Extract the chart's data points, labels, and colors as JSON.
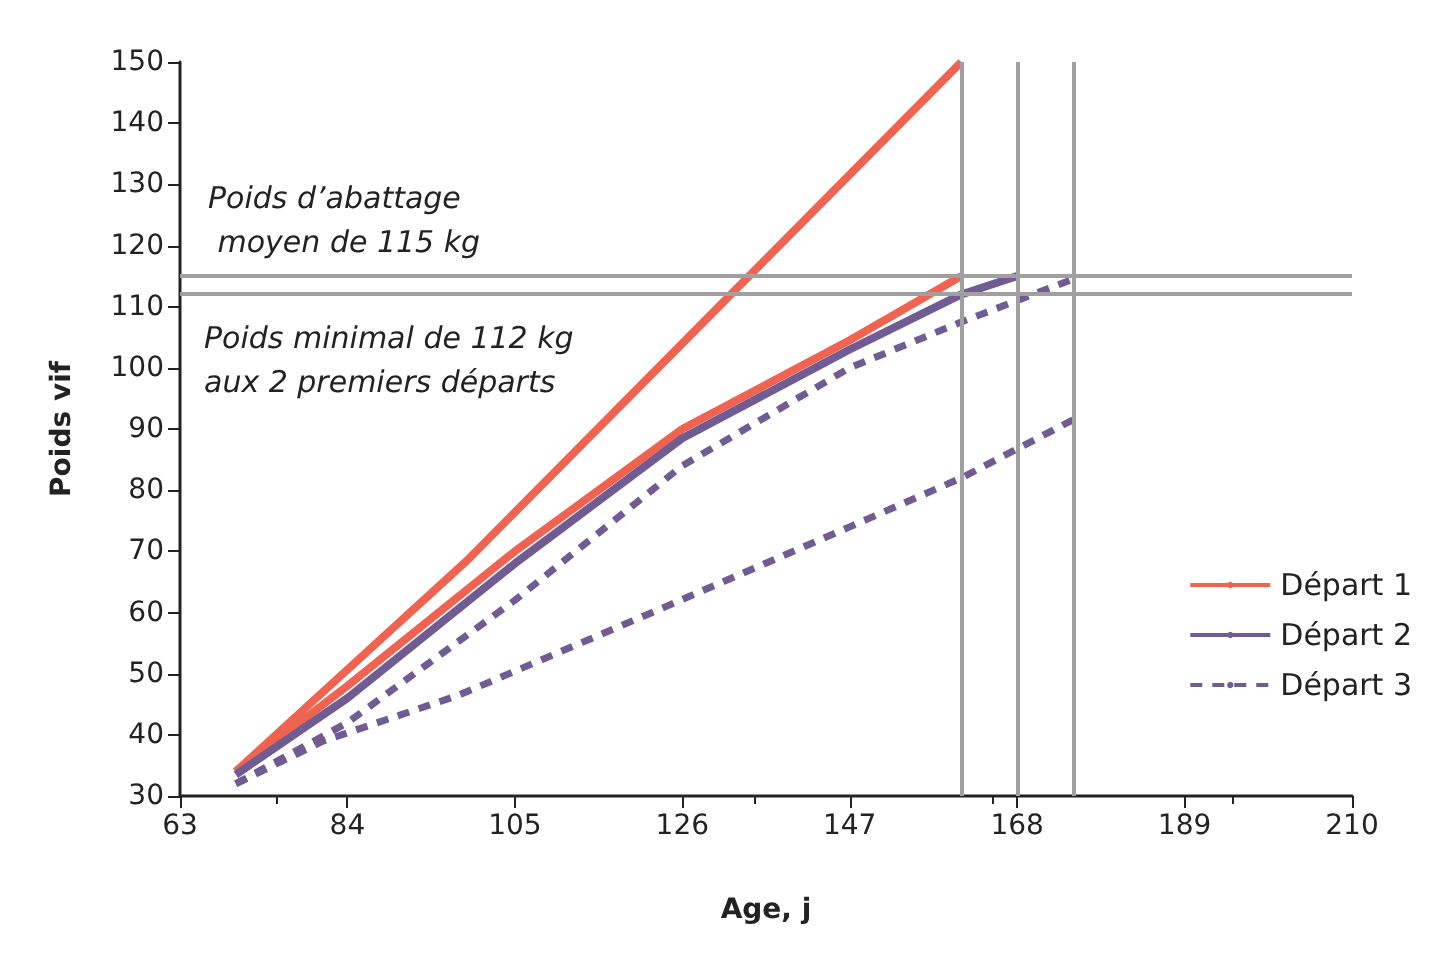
{
  "chart_data": {
    "type": "line",
    "xlabel": "Age, j",
    "ylabel": "Poids vif",
    "xlim": [
      63,
      210
    ],
    "xticks": [
      63,
      84,
      105,
      126,
      147,
      168,
      189,
      210
    ],
    "ylim": [
      30,
      150
    ],
    "yticks": [
      30,
      40,
      50,
      60,
      70,
      80,
      90,
      100,
      110,
      120,
      130,
      140,
      150
    ],
    "grid": false,
    "legend": "right",
    "marker": "none",
    "series": [
      {
        "name": "Départ 1",
        "color": "#ef6350",
        "line_style": "solid",
        "x": [
          70,
          84,
          105,
          126,
          147,
          161
        ],
        "values": [
          34,
          48,
          70,
          90,
          104.5,
          115
        ]
      },
      {
        "color": "#ef6350",
        "line_style": "solid",
        "x": [
          70,
          99,
          161
        ],
        "values": [
          34,
          68.5,
          150
        ]
      },
      {
        "name": "Départ 2",
        "color": "#705c93",
        "line_style": "solid",
        "x": [
          70,
          84,
          105,
          126,
          147,
          161,
          168
        ],
        "values": [
          33.5,
          46,
          68,
          88.5,
          103,
          112,
          115
        ]
      },
      {
        "name": "Départ 3",
        "color": "#705c93",
        "line_style": "dashed",
        "x": [
          70,
          84,
          105,
          126,
          147,
          161,
          168,
          175
        ],
        "values": [
          32,
          42,
          62,
          84,
          100,
          107.5,
          111,
          114.5
        ]
      },
      {
        "color": "#705c93",
        "line_style": "dashed",
        "x": [
          70,
          81,
          98,
          124,
          147,
          161,
          175
        ],
        "values": [
          32,
          39,
          46.5,
          61,
          74,
          82,
          91.5
        ]
      }
    ],
    "ref_lines": [
      {
        "axis": "y",
        "value": 115,
        "color": "#a0a0a0"
      },
      {
        "axis": "y",
        "value": 112,
        "color": "#a0a0a0"
      },
      {
        "axis": "x",
        "value": 161,
        "color": "#a0a0a0"
      },
      {
        "axis": "x",
        "value": 168,
        "color": "#a0a0a0"
      },
      {
        "axis": "x",
        "value": 175,
        "color": "#a0a0a0"
      }
    ],
    "annotations": [
      "Poids d’abattage\n moyen de 115 kg",
      "Poids minimal de 112 kg\naux 2 premiers départs"
    ]
  }
}
